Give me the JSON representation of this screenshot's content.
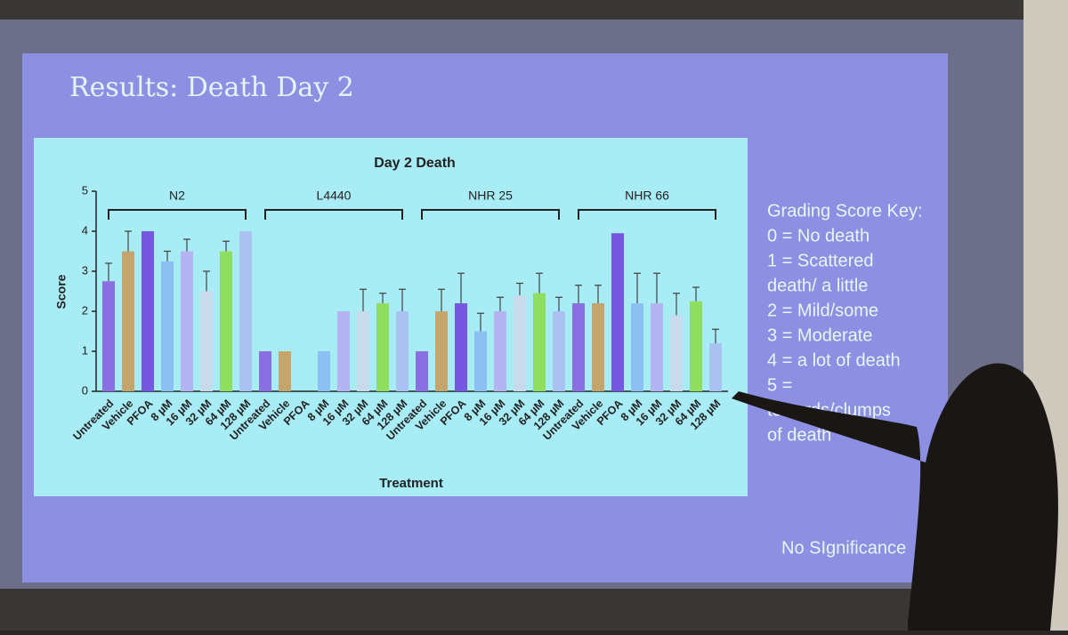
{
  "slide": {
    "title": "Results: Death  Day 2",
    "key": [
      "Grading Score Key:",
      "0 = No death",
      "1 = Scattered",
      "death/ a little",
      "2 = Mild/some",
      "3 = Moderate",
      "4 = a lot of death",
      "5 =",
      "towards/clumps",
      "of death"
    ],
    "note": "No SIgnificance"
  },
  "chart_data": {
    "type": "bar",
    "title": "Day 2 Death",
    "x_label": "Treatment",
    "y_label": "Score",
    "categories": [
      "Untreated",
      "Vehicle",
      "PFOA",
      "8 µM",
      "16 µM",
      "32 µM",
      "64 µM",
      "128 µM"
    ],
    "colors": [
      "#8a6fe2",
      "#c4a66c",
      "#7658e0",
      "#8cc0f2",
      "#b4b4f2",
      "#c6dcec",
      "#8fde62",
      "#a9c2f2"
    ],
    "series": [
      {
        "name": "N2",
        "values": [
          2.75,
          3.5,
          4,
          3.25,
          3.5,
          2.5,
          3.5,
          4
        ],
        "errors": [
          0.45,
          0.5,
          0,
          0.25,
          0.3,
          0.5,
          0.25,
          0
        ]
      },
      {
        "name": "L4440",
        "values": [
          1,
          1,
          0,
          1,
          2,
          2,
          2.2,
          2
        ],
        "errors": [
          0,
          0,
          0,
          0,
          0,
          0.55,
          0.25,
          0.55
        ]
      },
      {
        "name": "NHR 25",
        "values": [
          1,
          2,
          2.2,
          1.5,
          2,
          2.4,
          2.45,
          2
        ],
        "errors": [
          0,
          0.55,
          0.75,
          0.45,
          0.35,
          0.3,
          0.5,
          0.35
        ]
      },
      {
        "name": "NHR 66",
        "values": [
          2.2,
          2.2,
          3.95,
          2.2,
          2.2,
          1.9,
          2.25,
          1.2
        ],
        "errors": [
          0.45,
          0.45,
          0,
          0.75,
          0.75,
          0.55,
          0.35,
          0.35
        ]
      }
    ],
    "ylim": [
      0,
      5
    ],
    "yticks": [
      0,
      1,
      2,
      3,
      4,
      5
    ]
  }
}
